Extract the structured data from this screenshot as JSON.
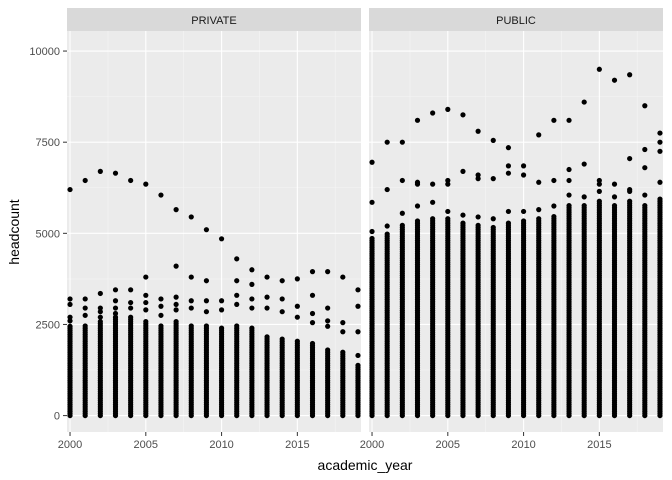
{
  "chart_data": {
    "type": "scatter",
    "xlabel": "academic_year",
    "ylabel": "headcount",
    "x_ticks": [
      "2000",
      "2005",
      "2010",
      "2015"
    ],
    "y_ticks": [
      "0",
      "2500",
      "5000",
      "7500",
      "10000"
    ],
    "xlim": [
      1999.8,
      2019.2
    ],
    "ylim": [
      -450,
      10550
    ],
    "grid": true,
    "panels": [
      {
        "name": "PRIVATE",
        "points": [
          [
            2000,
            6200
          ],
          [
            2001,
            6450
          ],
          [
            2002,
            6700
          ],
          [
            2003,
            6650
          ],
          [
            2004,
            6450
          ],
          [
            2005,
            6350
          ],
          [
            2006,
            6050
          ],
          [
            2007,
            5650
          ],
          [
            2008,
            5450
          ],
          [
            2009,
            5100
          ],
          [
            2010,
            4850
          ],
          [
            2011,
            4300
          ],
          [
            2012,
            4000
          ],
          [
            2013,
            3800
          ],
          [
            2014,
            3700
          ],
          [
            2015,
            3750
          ],
          [
            2016,
            3950
          ],
          [
            2017,
            3950
          ],
          [
            2018,
            3800
          ],
          [
            2019,
            3450
          ],
          [
            2005,
            3800
          ],
          [
            2007,
            4100
          ],
          [
            2008,
            3800
          ],
          [
            2009,
            3700
          ],
          [
            2011,
            3700
          ],
          [
            2012,
            3600
          ],
          [
            2016,
            3300
          ],
          [
            2017,
            2950
          ],
          [
            2019,
            3000
          ],
          [
            2000,
            3200
          ],
          [
            2000,
            3050
          ],
          [
            2000,
            2700
          ],
          [
            2000,
            2600
          ],
          [
            2000,
            2450
          ],
          [
            2001,
            3200
          ],
          [
            2001,
            2950
          ],
          [
            2001,
            2750
          ],
          [
            2002,
            3350
          ],
          [
            2002,
            2950
          ],
          [
            2002,
            2850
          ],
          [
            2002,
            2700
          ],
          [
            2003,
            3450
          ],
          [
            2003,
            3150
          ],
          [
            2003,
            2950
          ],
          [
            2003,
            2800
          ],
          [
            2004,
            3450
          ],
          [
            2004,
            3100
          ],
          [
            2004,
            2950
          ],
          [
            2005,
            3300
          ],
          [
            2005,
            3100
          ],
          [
            2005,
            2900
          ],
          [
            2006,
            3200
          ],
          [
            2006,
            3000
          ],
          [
            2006,
            2750
          ],
          [
            2007,
            3250
          ],
          [
            2007,
            3050
          ],
          [
            2007,
            2900
          ],
          [
            2008,
            3150
          ],
          [
            2008,
            2950
          ],
          [
            2009,
            3150
          ],
          [
            2009,
            2850
          ],
          [
            2010,
            3150
          ],
          [
            2010,
            2900
          ],
          [
            2011,
            3300
          ],
          [
            2011,
            3050
          ],
          [
            2012,
            3200
          ],
          [
            2012,
            2950
          ],
          [
            2013,
            3250
          ],
          [
            2013,
            2950
          ],
          [
            2014,
            3200
          ],
          [
            2014,
            2850
          ],
          [
            2015,
            3000
          ],
          [
            2015,
            2700
          ],
          [
            2016,
            2800
          ],
          [
            2016,
            2550
          ],
          [
            2017,
            2600
          ],
          [
            2017,
            2450
          ],
          [
            2018,
            2550
          ],
          [
            2018,
            2300
          ],
          [
            2019,
            2300
          ],
          [
            2019,
            1650
          ]
        ],
        "columns": [
          {
            "x": 2000,
            "max": 2400
          },
          {
            "x": 2001,
            "max": 2500
          },
          {
            "x": 2002,
            "max": 2600
          },
          {
            "x": 2003,
            "max": 2700
          },
          {
            "x": 2004,
            "max": 2700
          },
          {
            "x": 2005,
            "max": 2600
          },
          {
            "x": 2006,
            "max": 2500
          },
          {
            "x": 2007,
            "max": 2600
          },
          {
            "x": 2008,
            "max": 2500
          },
          {
            "x": 2009,
            "max": 2500
          },
          {
            "x": 2010,
            "max": 2450
          },
          {
            "x": 2011,
            "max": 2500
          },
          {
            "x": 2012,
            "max": 2450
          },
          {
            "x": 2013,
            "max": 2200
          },
          {
            "x": 2014,
            "max": 2100
          },
          {
            "x": 2015,
            "max": 2050
          },
          {
            "x": 2016,
            "max": 2000
          },
          {
            "x": 2017,
            "max": 1800
          },
          {
            "x": 2018,
            "max": 1750
          },
          {
            "x": 2019,
            "max": 1400
          }
        ]
      },
      {
        "name": "PUBLIC",
        "points": [
          [
            2000,
            6950
          ],
          [
            2001,
            7500
          ],
          [
            2002,
            7500
          ],
          [
            2003,
            8100
          ],
          [
            2004,
            8300
          ],
          [
            2005,
            8400
          ],
          [
            2006,
            8250
          ],
          [
            2007,
            7800
          ],
          [
            2008,
            7550
          ],
          [
            2009,
            7350
          ],
          [
            2010,
            6850
          ],
          [
            2011,
            7700
          ],
          [
            2012,
            8100
          ],
          [
            2013,
            8100
          ],
          [
            2014,
            8600
          ],
          [
            2015,
            9500
          ],
          [
            2016,
            9200
          ],
          [
            2017,
            9350
          ],
          [
            2018,
            8500
          ],
          [
            2019,
            7750
          ],
          [
            2000,
            5850
          ],
          [
            2001,
            6200
          ],
          [
            2002,
            6450
          ],
          [
            2003,
            6350
          ],
          [
            2004,
            6350
          ],
          [
            2005,
            6450
          ],
          [
            2006,
            6700
          ],
          [
            2007,
            6500
          ],
          [
            2008,
            6500
          ],
          [
            2009,
            6850
          ],
          [
            2010,
            6600
          ],
          [
            2011,
            6400
          ],
          [
            2012,
            6450
          ],
          [
            2013,
            6750
          ],
          [
            2014,
            6900
          ],
          [
            2015,
            6450
          ],
          [
            2016,
            6350
          ],
          [
            2017,
            7050
          ],
          [
            2018,
            7300
          ],
          [
            2019,
            7500
          ],
          [
            2000,
            5050
          ],
          [
            2001,
            5200
          ],
          [
            2002,
            5550
          ],
          [
            2003,
            5750
          ],
          [
            2004,
            5850
          ],
          [
            2005,
            5600
          ],
          [
            2006,
            5500
          ],
          [
            2007,
            5450
          ],
          [
            2008,
            5400
          ],
          [
            2009,
            5600
          ],
          [
            2010,
            5600
          ],
          [
            2011,
            5650
          ],
          [
            2012,
            5750
          ],
          [
            2013,
            6050
          ],
          [
            2014,
            6000
          ],
          [
            2015,
            6150
          ],
          [
            2016,
            6000
          ],
          [
            2017,
            6200
          ],
          [
            2018,
            6050
          ],
          [
            2019,
            6400
          ],
          [
            2003,
            6400
          ],
          [
            2005,
            6350
          ],
          [
            2007,
            6600
          ],
          [
            2009,
            6650
          ],
          [
            2013,
            6450
          ],
          [
            2015,
            6350
          ],
          [
            2017,
            6150
          ],
          [
            2018,
            6800
          ],
          [
            2019,
            7250
          ]
        ],
        "columns": [
          {
            "x": 2000,
            "max": 4900
          },
          {
            "x": 2001,
            "max": 5000
          },
          {
            "x": 2002,
            "max": 5250
          },
          {
            "x": 2003,
            "max": 5350
          },
          {
            "x": 2004,
            "max": 5450
          },
          {
            "x": 2005,
            "max": 5400
          },
          {
            "x": 2006,
            "max": 5300
          },
          {
            "x": 2007,
            "max": 5250
          },
          {
            "x": 2008,
            "max": 5200
          },
          {
            "x": 2009,
            "max": 5300
          },
          {
            "x": 2010,
            "max": 5350
          },
          {
            "x": 2011,
            "max": 5450
          },
          {
            "x": 2012,
            "max": 5500
          },
          {
            "x": 2013,
            "max": 5800
          },
          {
            "x": 2014,
            "max": 5800
          },
          {
            "x": 2015,
            "max": 5900
          },
          {
            "x": 2016,
            "max": 5800
          },
          {
            "x": 2017,
            "max": 5900
          },
          {
            "x": 2018,
            "max": 5800
          },
          {
            "x": 2019,
            "max": 5950
          }
        ]
      }
    ]
  }
}
